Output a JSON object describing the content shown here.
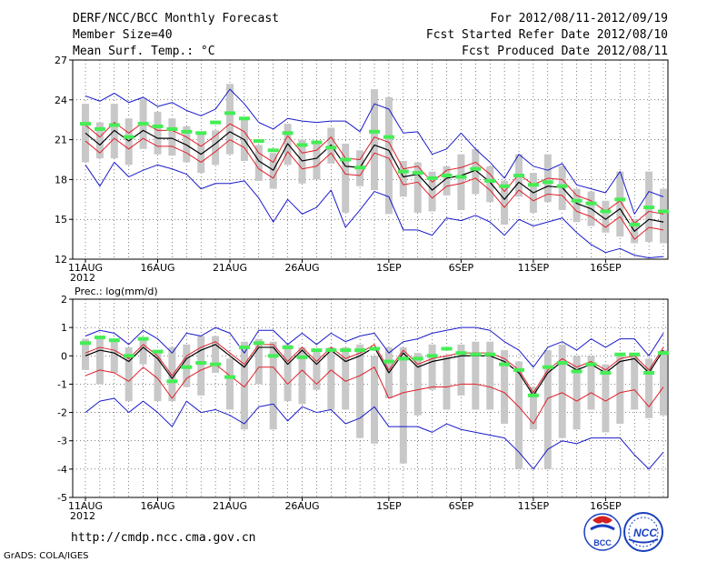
{
  "header": {
    "line1": "DERF/NCC/BCC Monthly Forecast",
    "line2": "Member Size=40",
    "line3": "Mean Surf. Temp.: °C",
    "right1": "For 2012/08/11-2012/09/19",
    "right2": "Fcst Started Refer Date 2012/08/10",
    "right3": "Fcst Produced Date 2012/08/11"
  },
  "footer": {
    "url": "http://cmdp.ncc.cma.gov.cn",
    "credit": "GrADS: COLA/IGES",
    "logo_bcc": "BCC",
    "logo_ncc": "NCC"
  },
  "colors": {
    "mean": "#000000",
    "spread_inner": "#e0202a",
    "envelope": "#1a1acc",
    "member_bar": "#c8c8c8",
    "climatology": "#44ee55",
    "grid": "#000000"
  },
  "chart_data": [
    {
      "type": "line",
      "title": "Mean Surf. Temp.: °C",
      "ylim": [
        12,
        27
      ],
      "yticks": [
        12,
        15,
        18,
        21,
        24,
        27
      ],
      "x_tick_labels": [
        "11AUG",
        "16AUG",
        "21AUG",
        "26AUG",
        "1SEP",
        "6SEP",
        "11SEP",
        "16SEP"
      ],
      "x_tick_days": [
        0,
        5,
        10,
        15,
        21,
        26,
        31,
        36
      ],
      "year_label": "2012",
      "series": [
        {
          "name": "ensemble_mean",
          "values": [
            21.5,
            20.6,
            21.7,
            20.9,
            21.7,
            21.1,
            21.1,
            20.6,
            19.9,
            20.7,
            21.6,
            21.0,
            19.4,
            18.7,
            20.7,
            19.4,
            19.6,
            20.6,
            19.0,
            18.9,
            20.6,
            20.2,
            18.2,
            18.4,
            17.2,
            18.1,
            18.3,
            18.7,
            17.8,
            16.5,
            17.8,
            17.0,
            17.5,
            17.4,
            16.2,
            15.8,
            15.0,
            15.8,
            14.1,
            15.0,
            14.8
          ]
        },
        {
          "name": "mean_plus_std",
          "values": [
            22.1,
            21.2,
            22.3,
            21.5,
            22.3,
            21.7,
            21.7,
            21.2,
            20.5,
            21.3,
            22.2,
            21.6,
            20.0,
            19.3,
            21.3,
            20.0,
            20.2,
            21.2,
            19.6,
            19.5,
            21.2,
            20.8,
            18.8,
            19.0,
            17.8,
            18.7,
            18.9,
            19.3,
            18.4,
            17.1,
            18.4,
            17.6,
            18.1,
            18.0,
            16.8,
            16.4,
            15.6,
            16.4,
            14.7,
            15.6,
            15.4
          ]
        },
        {
          "name": "mean_minus_std",
          "values": [
            20.9,
            20.0,
            21.1,
            20.3,
            21.1,
            20.5,
            20.5,
            20.0,
            19.3,
            20.1,
            21.0,
            20.4,
            18.8,
            18.1,
            20.1,
            18.8,
            19.0,
            20.0,
            18.4,
            18.3,
            20.0,
            19.6,
            17.6,
            17.8,
            16.6,
            17.5,
            17.7,
            18.1,
            17.2,
            15.9,
            17.2,
            16.4,
            16.9,
            16.8,
            15.6,
            15.2,
            14.4,
            15.2,
            13.5,
            14.4,
            14.2
          ]
        },
        {
          "name": "max_envelope",
          "values": [
            24.3,
            23.9,
            24.5,
            23.8,
            24.2,
            23.5,
            23.8,
            23.2,
            22.8,
            23.3,
            24.8,
            23.7,
            22.3,
            21.8,
            22.6,
            22.4,
            22.3,
            22.4,
            22.4,
            21.6,
            23.7,
            23.3,
            21.5,
            21.6,
            19.9,
            20.3,
            21.5,
            20.3,
            19.3,
            18.1,
            19.9,
            19.0,
            18.7,
            19.2,
            17.6,
            17.3,
            17.0,
            18.6,
            15.4,
            17.1,
            16.7
          ]
        },
        {
          "name": "min_envelope",
          "values": [
            19.1,
            17.5,
            19.3,
            18.2,
            18.7,
            19.1,
            18.8,
            18.4,
            17.3,
            17.7,
            17.7,
            17.9,
            16.6,
            14.8,
            16.5,
            15.4,
            15.9,
            17.2,
            14.4,
            15.7,
            17.1,
            16.7,
            14.2,
            14.2,
            13.8,
            15.1,
            14.9,
            15.3,
            14.8,
            13.8,
            15.0,
            14.5,
            14.8,
            15.1,
            14.0,
            13.1,
            12.5,
            12.8,
            12.3,
            12.1,
            12.2
          ]
        },
        {
          "name": "member_range",
          "low": [
            19.3,
            19.6,
            19.6,
            19.1,
            20.3,
            19.9,
            19.8,
            19.3,
            18.5,
            19.1,
            19.9,
            19.4,
            17.9,
            17.3,
            19.1,
            17.7,
            18.0,
            19.2,
            15.5,
            17.5,
            17.2,
            15.4,
            16.7,
            15.5,
            15.6,
            16.8,
            15.7,
            16.9,
            16.3,
            14.6,
            16.7,
            15.5,
            16.3,
            15.7,
            14.8,
            14.5,
            14.0,
            13.7,
            13.2,
            13.3,
            13.2
          ],
          "high": [
            23.7,
            22.3,
            23.7,
            22.6,
            24.1,
            23.1,
            22.6,
            22.0,
            21.5,
            21.7,
            25.2,
            22.7,
            20.6,
            20.0,
            22.2,
            21.0,
            20.9,
            21.9,
            20.7,
            20.2,
            24.8,
            24.2,
            19.4,
            19.3,
            18.6,
            19.0,
            19.9,
            20.3,
            19.0,
            17.9,
            19.9,
            18.5,
            19.9,
            19.0,
            17.3,
            17.1,
            16.4,
            18.6,
            15.0,
            18.6,
            17.3
          ]
        },
        {
          "name": "climatology",
          "values": [
            22.2,
            21.8,
            22.1,
            21.2,
            22.2,
            22.0,
            21.8,
            21.6,
            21.5,
            22.3,
            23.0,
            22.6,
            20.9,
            20.2,
            21.5,
            20.6,
            20.8,
            20.4,
            19.5,
            18.9,
            21.6,
            21.2,
            18.6,
            18.5,
            18.1,
            18.3,
            18.2,
            18.8,
            17.9,
            17.5,
            18.3,
            17.6,
            17.8,
            17.5,
            16.4,
            16.2,
            15.6,
            16.5,
            14.6,
            15.9,
            15.6
          ]
        }
      ]
    },
    {
      "type": "line",
      "title": "Prec.: log(mm/d)",
      "ylim": [
        -5,
        2
      ],
      "yticks": [
        -5,
        -4,
        -3,
        -2,
        -1,
        0,
        1,
        2
      ],
      "x_tick_labels": [
        "11AUG",
        "16AUG",
        "21AUG",
        "26AUG",
        "1SEP",
        "6SEP",
        "11SEP",
        "16SEP"
      ],
      "x_tick_days": [
        0,
        5,
        10,
        15,
        21,
        26,
        31,
        36
      ],
      "year_label": "2012",
      "series": [
        {
          "name": "ensemble_mean",
          "values": [
            0.0,
            0.2,
            0.1,
            -0.2,
            0.3,
            -0.1,
            -0.8,
            -0.1,
            0.2,
            0.4,
            0.0,
            -0.4,
            0.3,
            0.3,
            -0.3,
            0.2,
            -0.3,
            0.2,
            -0.2,
            0.0,
            0.3,
            -0.6,
            0.1,
            -0.4,
            -0.2,
            -0.1,
            0.0,
            0.0,
            0.0,
            -0.2,
            -0.6,
            -1.4,
            -0.6,
            -0.2,
            -0.5,
            -0.3,
            -0.6,
            -0.2,
            -0.1,
            -0.6,
            0.2
          ]
        },
        {
          "name": "mean_plus_std",
          "values": [
            0.1,
            0.3,
            0.2,
            -0.1,
            0.4,
            0.0,
            -0.7,
            0.0,
            0.3,
            0.5,
            0.1,
            -0.3,
            0.4,
            0.4,
            -0.2,
            0.3,
            -0.2,
            0.3,
            -0.1,
            0.1,
            0.4,
            -0.5,
            0.2,
            -0.3,
            -0.1,
            0.0,
            0.1,
            0.1,
            0.1,
            -0.1,
            -0.5,
            -1.3,
            -0.5,
            -0.1,
            -0.4,
            -0.2,
            -0.5,
            -0.1,
            0.0,
            -0.5,
            0.3
          ]
        },
        {
          "name": "mean_minus_std",
          "values": [
            -0.7,
            -0.5,
            -0.6,
            -0.9,
            -0.4,
            -0.8,
            -1.5,
            -0.8,
            -0.5,
            -0.3,
            -0.7,
            -1.1,
            -0.4,
            -0.4,
            -1.0,
            -0.5,
            -1.0,
            -0.5,
            -0.9,
            -0.7,
            -0.4,
            -1.5,
            -1.3,
            -1.2,
            -1.1,
            -1.1,
            -1.0,
            -1.0,
            -1.1,
            -1.3,
            -1.8,
            -2.4,
            -1.5,
            -1.3,
            -1.6,
            -1.3,
            -1.6,
            -1.3,
            -1.2,
            -1.8,
            -1.1
          ]
        },
        {
          "name": "max_envelope",
          "values": [
            0.7,
            0.9,
            0.8,
            0.4,
            0.9,
            0.6,
            0.1,
            0.8,
            0.7,
            1.0,
            0.8,
            0.1,
            0.9,
            0.9,
            0.4,
            0.8,
            0.4,
            0.8,
            0.5,
            0.7,
            0.8,
            0.1,
            0.5,
            0.6,
            0.8,
            0.9,
            1.0,
            1.0,
            0.9,
            0.5,
            0.2,
            -0.4,
            0.3,
            0.5,
            0.2,
            0.6,
            0.3,
            0.6,
            0.6,
            0.0,
            0.8
          ]
        },
        {
          "name": "min_envelope",
          "values": [
            -2.0,
            -1.6,
            -1.5,
            -2.0,
            -1.6,
            -2.0,
            -2.5,
            -1.6,
            -2.0,
            -1.9,
            -2.1,
            -2.4,
            -1.8,
            -1.7,
            -2.3,
            -1.8,
            -2.0,
            -1.9,
            -2.4,
            -2.2,
            -1.8,
            -2.5,
            -2.5,
            -2.5,
            -2.7,
            -2.4,
            -2.6,
            -2.7,
            -2.8,
            -2.9,
            -3.4,
            -4.0,
            -3.3,
            -3.0,
            -3.1,
            -2.9,
            -2.9,
            -2.9,
            -3.5,
            -4.0,
            -3.4
          ]
        },
        {
          "name": "member_range",
          "low": [
            -0.5,
            -1.0,
            -0.6,
            -1.6,
            -0.3,
            -1.6,
            -1.6,
            -1.1,
            -1.4,
            -0.6,
            -1.9,
            -2.6,
            -1.0,
            -2.6,
            -1.6,
            -1.7,
            -1.2,
            -1.9,
            -1.9,
            -2.9,
            -3.1,
            -1.5,
            -3.8,
            -2.1,
            -1.2,
            -1.9,
            -1.4,
            -1.9,
            -1.9,
            -2.4,
            -4.0,
            -2.6,
            -4.0,
            -2.9,
            -2.6,
            -1.9,
            -2.7,
            -2.4,
            -1.9,
            -2.2,
            -2.1
          ],
          "high": [
            0.6,
            0.6,
            0.5,
            0.3,
            0.6,
            0.2,
            0.3,
            0.4,
            0.7,
            0.7,
            -0.1,
            0.5,
            0.6,
            0.5,
            0.4,
            0.3,
            0.2,
            0.3,
            0.3,
            0.4,
            0.0,
            0.3,
            0.3,
            0.1,
            0.4,
            0.0,
            0.4,
            0.5,
            0.5,
            0.2,
            -0.2,
            -1.1,
            0.2,
            0.4,
            0.0,
            0.0,
            -0.3,
            0.1,
            0.1,
            -0.1,
            0.2
          ]
        },
        {
          "name": "climatology",
          "values": [
            0.45,
            0.65,
            0.55,
            0.0,
            0.6,
            0.15,
            -0.9,
            -0.4,
            -0.25,
            -0.3,
            -0.75,
            0.3,
            0.45,
            0.0,
            0.3,
            -0.05,
            0.2,
            0.2,
            0.2,
            0.2,
            0.25,
            -0.2,
            -0.1,
            -0.1,
            0.0,
            0.25,
            0.1,
            0.05,
            0.05,
            -0.3,
            -0.5,
            -1.4,
            -0.4,
            -0.25,
            -0.55,
            -0.3,
            -0.6,
            0.05,
            0.05,
            -0.6,
            0.1
          ]
        }
      ]
    }
  ]
}
